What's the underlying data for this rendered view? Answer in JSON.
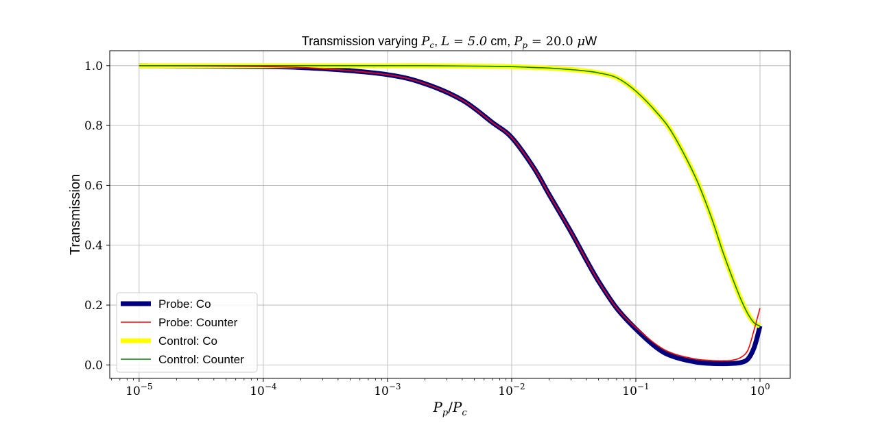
{
  "chart_data": {
    "type": "line",
    "title": "Transmission varying P_c, L = 5.0 cm, P_p = 20.0 μW",
    "title_parts": {
      "prefix": "Transmission varying ",
      "pc_main": "P",
      "pc_sub": "c",
      "sep1": ", ",
      "l_eq": "L = 5.0",
      "cm": " cm, ",
      "pp_main": "P",
      "pp_sub": "p",
      "pp_eq": " = 20.0 ",
      "mu": "μ",
      "unit": "W"
    },
    "xlabel": "P_p/P_c",
    "xlabel_parts": {
      "p1": "P",
      "s1": "p",
      "slash": "/",
      "p2": "P",
      "s2": "c"
    },
    "ylabel": "Transmission",
    "xscale": "log",
    "xlim": [
      5.8e-06,
      1.75
    ],
    "ylim": [
      -0.045,
      1.05
    ],
    "grid": true,
    "legend_position": "lower-left",
    "x_ticks": [
      {
        "value": 1e-05,
        "base": "10",
        "exp": "−5"
      },
      {
        "value": 0.0001,
        "base": "10",
        "exp": "−4"
      },
      {
        "value": 0.001,
        "base": "10",
        "exp": "−3"
      },
      {
        "value": 0.01,
        "base": "10",
        "exp": "−2"
      },
      {
        "value": 0.1,
        "base": "10",
        "exp": "−1"
      },
      {
        "value": 1,
        "base": "10",
        "exp": "0"
      }
    ],
    "y_ticks": [
      {
        "value": 0.0,
        "label": "0.0"
      },
      {
        "value": 0.2,
        "label": "0.2"
      },
      {
        "value": 0.4,
        "label": "0.4"
      },
      {
        "value": 0.6,
        "label": "0.6"
      },
      {
        "value": 0.8,
        "label": "0.8"
      },
      {
        "value": 1.0,
        "label": "1.0"
      }
    ],
    "x": [
      1e-05,
      0.0001,
      0.0003,
      0.001,
      0.002,
      0.004,
      0.007,
      0.01,
      0.015,
      0.02,
      0.03,
      0.04,
      0.05,
      0.07,
      0.1,
      0.15,
      0.2,
      0.3,
      0.4,
      0.5,
      0.6,
      0.7,
      0.8,
      0.9,
      1.0
    ],
    "series": [
      {
        "name": "Probe: Co",
        "color": "#00007f",
        "style": "thick",
        "values": [
          1.0,
          0.997,
          0.99,
          0.97,
          0.94,
          0.885,
          0.81,
          0.76,
          0.66,
          0.57,
          0.445,
          0.35,
          0.28,
          0.19,
          0.12,
          0.055,
          0.028,
          0.01,
          0.005,
          0.004,
          0.005,
          0.008,
          0.02,
          0.06,
          0.13
        ]
      },
      {
        "name": "Probe: Counter",
        "color": "#ff0000",
        "style": "thin",
        "values": [
          1.0,
          0.997,
          0.99,
          0.97,
          0.94,
          0.885,
          0.81,
          0.76,
          0.66,
          0.57,
          0.445,
          0.35,
          0.28,
          0.19,
          0.125,
          0.065,
          0.038,
          0.02,
          0.015,
          0.014,
          0.016,
          0.025,
          0.05,
          0.12,
          0.19
        ]
      },
      {
        "name": "Control: Co",
        "color": "#ffff00",
        "style": "thick",
        "values": [
          1.0,
          1.0,
          1.0,
          1.0,
          1.0,
          0.999,
          0.998,
          0.997,
          0.994,
          0.992,
          0.987,
          0.982,
          0.976,
          0.96,
          0.915,
          0.84,
          0.77,
          0.63,
          0.5,
          0.38,
          0.29,
          0.22,
          0.17,
          0.14,
          0.13
        ]
      },
      {
        "name": "Control: Counter",
        "color": "#008000",
        "style": "thin",
        "values": [
          1.0,
          1.0,
          1.0,
          1.0,
          1.0,
          0.999,
          0.998,
          0.997,
          0.994,
          0.992,
          0.987,
          0.982,
          0.976,
          0.96,
          0.915,
          0.84,
          0.77,
          0.63,
          0.5,
          0.38,
          0.29,
          0.22,
          0.17,
          0.14,
          0.13
        ]
      }
    ]
  }
}
